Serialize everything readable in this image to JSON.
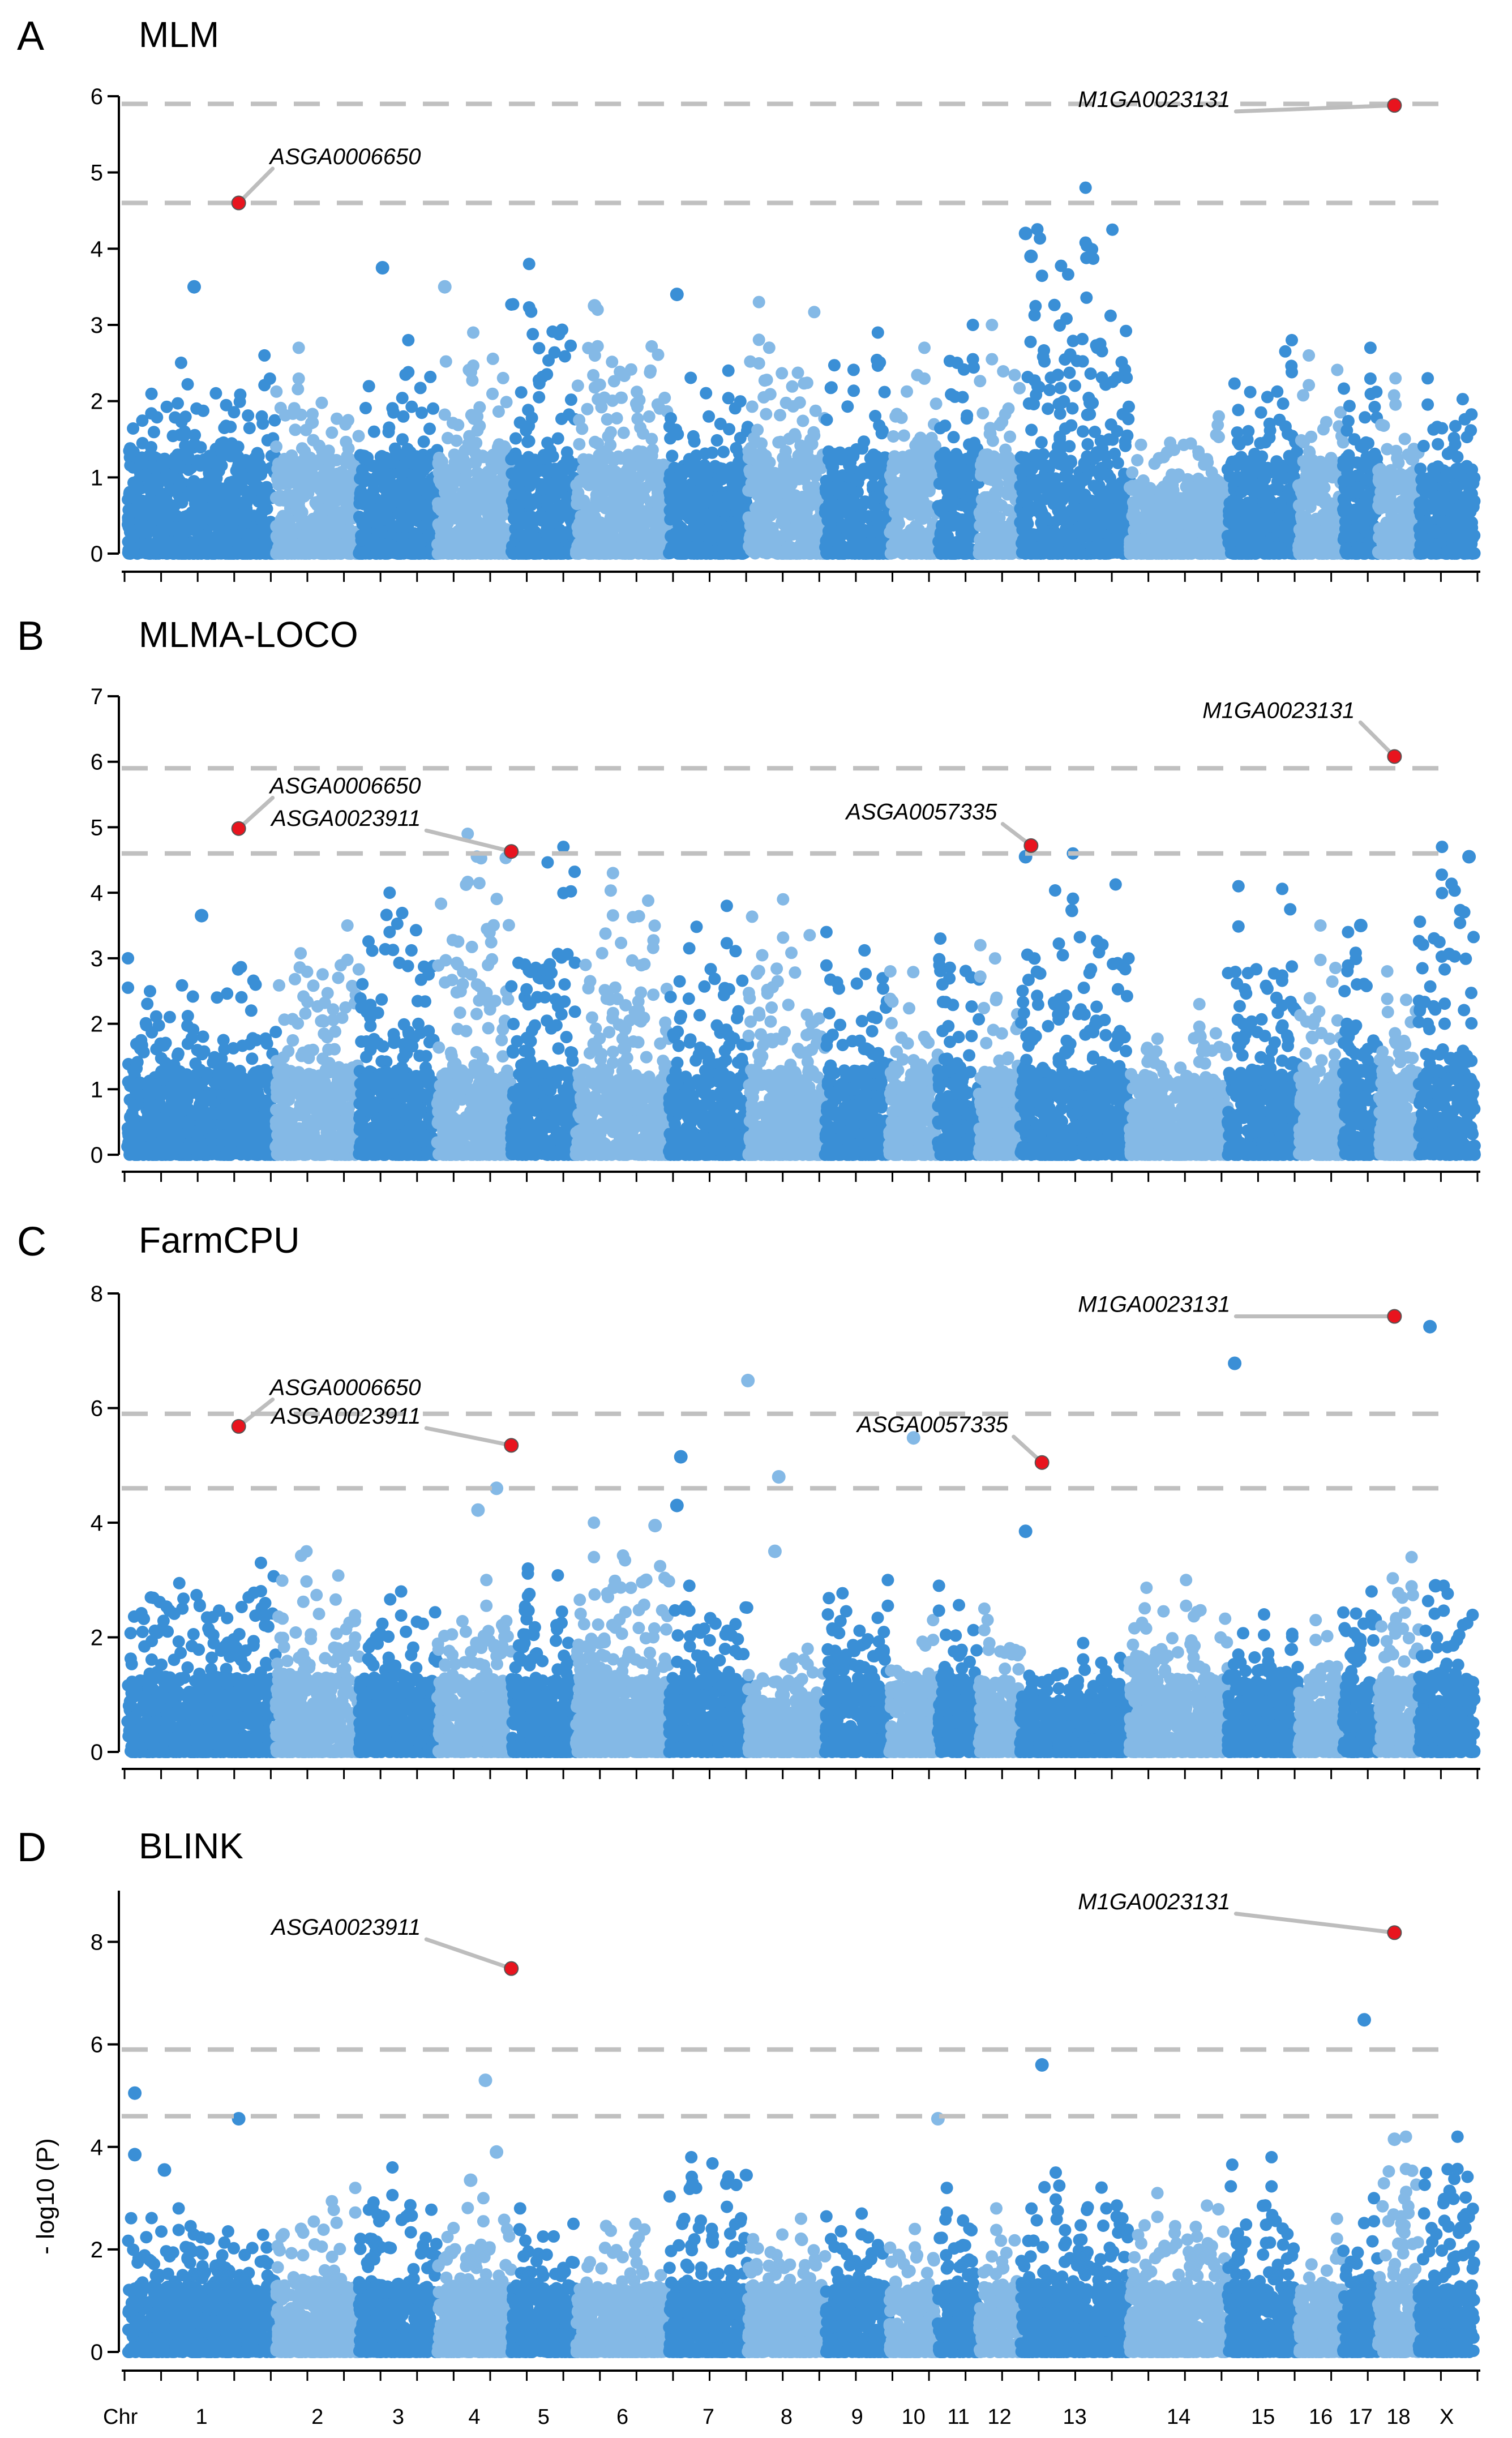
{
  "figure": {
    "y_axis_label": "- log10 (P)",
    "chr_axis_title": "Chr",
    "chromosomes": [
      "1",
      "2",
      "3",
      "4",
      "5",
      "6",
      "7",
      "8",
      "9",
      "10",
      "11",
      "12",
      "13",
      "14",
      "15",
      "16",
      "17",
      "18",
      "X"
    ],
    "chr_lengths": [
      271,
      152,
      143,
      135,
      118,
      170,
      144,
      141,
      117,
      89,
      75,
      75,
      200,
      179,
      129,
      82,
      64,
      74,
      102
    ],
    "colors": {
      "dark": "#3a8fd6",
      "light": "#84b9e6",
      "highlight": "#e8141e",
      "threshold": "#c0c0c0",
      "leader": "#bdbdbd"
    }
  },
  "chart_data": [
    {
      "type": "scatter",
      "letter": "A",
      "title": "MLM",
      "ylim": [
        0,
        6
      ],
      "yticks": [
        0,
        1,
        2,
        3,
        4,
        5,
        6
      ],
      "thresholds": [
        4.6,
        5.9
      ],
      "background_max": [
        2.6,
        2.7,
        2.8,
        2.9,
        3.8,
        3.2,
        2.4,
        3.3,
        2.9,
        2.7,
        3.0,
        3.0,
        4.8,
        1.8,
        2.8,
        2.6,
        2.7,
        2.3,
        2.3
      ],
      "extra_points": [
        {
          "chr": "1",
          "pos": 0.45,
          "y": 3.5
        },
        {
          "chr": "3",
          "pos": 0.3,
          "y": 3.75
        },
        {
          "chr": "4",
          "pos": 0.1,
          "y": 3.5
        },
        {
          "chr": "6",
          "pos": 0.2,
          "y": 3.25
        },
        {
          "chr": "7",
          "pos": 0.1,
          "y": 3.4
        },
        {
          "chr": "13",
          "pos": 0.05,
          "y": 4.2
        },
        {
          "chr": "13",
          "pos": 0.1,
          "y": 3.9
        }
      ],
      "annotations": [
        {
          "snp": "ASGA0006650",
          "chr": "1",
          "pos": 0.75,
          "y": 4.6,
          "label_y": 5.05,
          "label_side": "right"
        },
        {
          "snp": "M1GA0023131",
          "chr": "18",
          "pos": 0.4,
          "y": 5.88,
          "label_y": 5.8,
          "label_side": "left"
        }
      ]
    },
    {
      "type": "scatter",
      "letter": "B",
      "title": "MLMA-LOCO",
      "ylim": [
        0,
        7
      ],
      "yticks": [
        0,
        1,
        2,
        3,
        4,
        5,
        6,
        7
      ],
      "thresholds": [
        4.6,
        5.9
      ],
      "background_max": [
        3.0,
        3.5,
        4.0,
        4.9,
        4.7,
        4.3,
        3.8,
        3.9,
        3.4,
        2.8,
        3.3,
        3.2,
        4.6,
        2.3,
        4.1,
        3.5,
        3.4,
        2.8,
        4.7
      ],
      "extra_points": [
        {
          "chr": "1",
          "pos": 0.5,
          "y": 3.65
        },
        {
          "chr": "5",
          "pos": 0.3,
          "y": 2.8
        },
        {
          "chr": "13",
          "pos": 0.05,
          "y": 4.55
        },
        {
          "chr": "17",
          "pos": 0.5,
          "y": 3.5
        },
        {
          "chr": "X",
          "pos": 0.9,
          "y": 4.55
        }
      ],
      "annotations": [
        {
          "snp": "ASGA0006650",
          "chr": "1",
          "pos": 0.75,
          "y": 4.98,
          "label_y": 5.45,
          "label_side": "right"
        },
        {
          "snp": "ASGA0023911",
          "chr": "4",
          "pos": 1.0,
          "y": 4.63,
          "label_y": 4.95,
          "label_side": "left"
        },
        {
          "snp": "ASGA0057335",
          "chr": "13",
          "pos": 0.1,
          "y": 4.72,
          "label_y": 5.05,
          "label_side": "left"
        },
        {
          "snp": "M1GA0023131",
          "chr": "18",
          "pos": 0.4,
          "y": 6.08,
          "label_y": 6.6,
          "label_side": "left"
        }
      ]
    },
    {
      "type": "scatter",
      "letter": "C",
      "title": "FarmCPU",
      "ylim": [
        0,
        8
      ],
      "yticks": [
        0,
        2,
        4,
        6,
        8
      ],
      "thresholds": [
        4.6,
        5.9
      ],
      "background_max": [
        3.3,
        3.5,
        2.8,
        3.0,
        3.2,
        4.0,
        2.9,
        1.8,
        3.0,
        2.3,
        2.9,
        2.5,
        1.9,
        3.0,
        2.4,
        2.3,
        2.8,
        3.4,
        2.9
      ],
      "extra_points": [
        {
          "chr": "4",
          "pos": 0.55,
          "y": 4.22
        },
        {
          "chr": "4",
          "pos": 0.8,
          "y": 4.6
        },
        {
          "chr": "6",
          "pos": 0.85,
          "y": 3.95
        },
        {
          "chr": "7",
          "pos": 0.1,
          "y": 4.3
        },
        {
          "chr": "7",
          "pos": 0.15,
          "y": 5.15
        },
        {
          "chr": "8",
          "pos": 0.0,
          "y": 6.48
        },
        {
          "chr": "8",
          "pos": 0.4,
          "y": 4.8
        },
        {
          "chr": "8",
          "pos": 0.35,
          "y": 3.5
        },
        {
          "chr": "10",
          "pos": 0.5,
          "y": 5.48
        },
        {
          "chr": "13",
          "pos": 0.05,
          "y": 3.85
        },
        {
          "chr": "15",
          "pos": 0.1,
          "y": 6.78
        },
        {
          "chr": "X",
          "pos": 0.2,
          "y": 7.42
        },
        {
          "chr": "X",
          "pos": 0.3,
          "y": 2.9
        },
        {
          "chr": "X",
          "pos": 0.45,
          "y": 1.3
        }
      ],
      "annotations": [
        {
          "snp": "ASGA0006650",
          "chr": "1",
          "pos": 0.75,
          "y": 5.68,
          "label_y": 6.15,
          "label_side": "right"
        },
        {
          "snp": "ASGA0023911",
          "chr": "4",
          "pos": 1.0,
          "y": 5.35,
          "label_y": 5.65,
          "label_side": "left"
        },
        {
          "snp": "ASGA0057335",
          "chr": "13",
          "pos": 0.2,
          "y": 5.05,
          "label_y": 5.5,
          "label_side": "left"
        },
        {
          "snp": "M1GA0023131",
          "chr": "18",
          "pos": 0.4,
          "y": 7.6,
          "label_y": 7.6,
          "label_side": "left"
        }
      ]
    },
    {
      "type": "scatter",
      "letter": "D",
      "title": "BLINK",
      "ylim": [
        0,
        9
      ],
      "yticks": [
        0,
        2,
        4,
        6,
        8
      ],
      "thresholds": [
        4.6,
        5.9
      ],
      "background_max": [
        2.8,
        3.2,
        3.6,
        3.0,
        2.8,
        2.5,
        3.8,
        2.6,
        2.7,
        2.4,
        3.2,
        2.8,
        3.5,
        3.1,
        3.8,
        2.6,
        3.0,
        4.2,
        4.2
      ],
      "extra_points": [
        {
          "chr": "1",
          "pos": 0.05,
          "y": 5.05
        },
        {
          "chr": "1",
          "pos": 0.05,
          "y": 3.85
        },
        {
          "chr": "1",
          "pos": 0.25,
          "y": 3.55
        },
        {
          "chr": "1",
          "pos": 0.75,
          "y": 4.55
        },
        {
          "chr": "4",
          "pos": 0.65,
          "y": 5.3
        },
        {
          "chr": "4",
          "pos": 0.8,
          "y": 3.9
        },
        {
          "chr": "4",
          "pos": 0.45,
          "y": 3.35
        },
        {
          "chr": "10",
          "pos": 1.0,
          "y": 4.55
        },
        {
          "chr": "13",
          "pos": 0.2,
          "y": 5.6
        },
        {
          "chr": "17",
          "pos": 0.6,
          "y": 6.48
        },
        {
          "chr": "18",
          "pos": 0.4,
          "y": 4.15
        }
      ],
      "annotations": [
        {
          "snp": "ASGA0023911",
          "chr": "4",
          "pos": 1.0,
          "y": 7.48,
          "label_y": 8.05,
          "label_side": "left"
        },
        {
          "snp": "M1GA0023131",
          "chr": "18",
          "pos": 0.4,
          "y": 8.18,
          "label_y": 8.55,
          "label_side": "left"
        }
      ]
    }
  ]
}
